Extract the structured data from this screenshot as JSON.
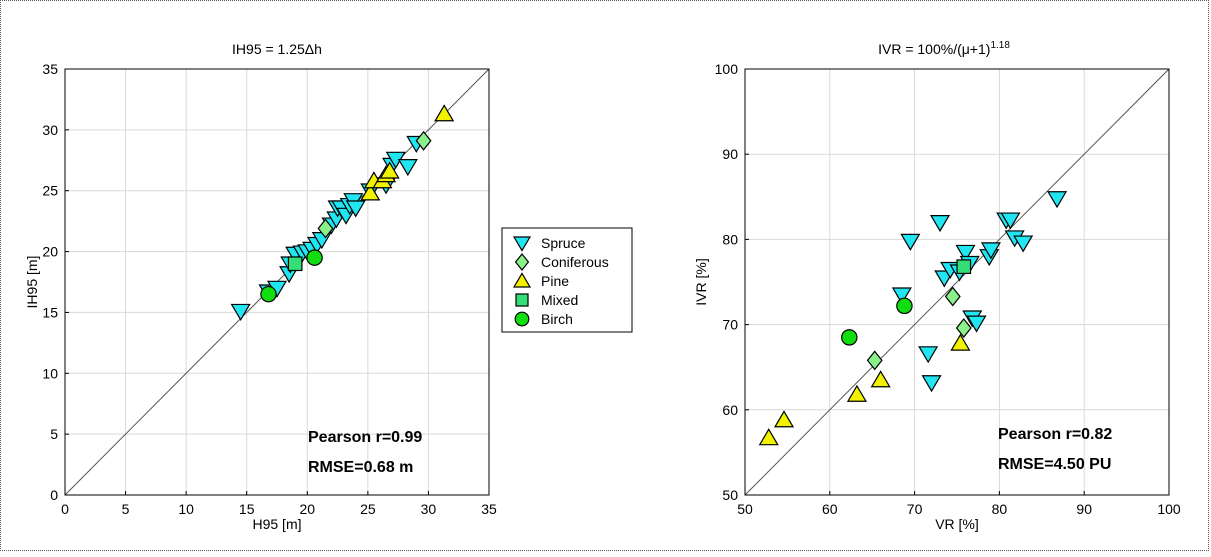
{
  "legend": {
    "entries": [
      {
        "label": "Spruce",
        "marker": "triangle-down",
        "color": "#22e5f2"
      },
      {
        "label": "Coniferous",
        "marker": "diamond",
        "color": "#8af08a"
      },
      {
        "label": "Pine",
        "marker": "triangle-up",
        "color": "#f2f200"
      },
      {
        "label": "Mixed",
        "marker": "square",
        "color": "#33dd77"
      },
      {
        "label": "Birch",
        "marker": "circle",
        "color": "#11dd11"
      }
    ]
  },
  "chart_data": [
    {
      "type": "scatter",
      "title": "IH95 = 1.25Δh",
      "xlabel": "H95 [m]",
      "ylabel": "IH95 [m]",
      "xlim": [
        0,
        35
      ],
      "ylim": [
        0,
        35
      ],
      "xticks": [
        "0",
        "5",
        "10",
        "15",
        "20",
        "25",
        "30",
        "35"
      ],
      "yticks": [
        "0",
        "5",
        "10",
        "15",
        "20",
        "25",
        "30",
        "35"
      ],
      "grid": true,
      "identity_line": true,
      "annotations": [
        "Pearson r=0.99",
        "RMSE=0.68 m"
      ],
      "series": [
        {
          "name": "Spruce",
          "points": [
            [
              14.5,
              15.1
            ],
            [
              16.8,
              16.7
            ],
            [
              17.5,
              17.0
            ],
            [
              18.5,
              18.2
            ],
            [
              18.6,
              19.0
            ],
            [
              19.0,
              19.8
            ],
            [
              19.6,
              19.9
            ],
            [
              20.0,
              20.0
            ],
            [
              20.4,
              20.2
            ],
            [
              20.8,
              20.6
            ],
            [
              21.2,
              21.0
            ],
            [
              22.0,
              22.2
            ],
            [
              22.4,
              22.7
            ],
            [
              22.5,
              23.6
            ],
            [
              22.8,
              23.6
            ],
            [
              23.2,
              23.0
            ],
            [
              23.5,
              23.8
            ],
            [
              23.8,
              24.2
            ],
            [
              25.2,
              25.0
            ],
            [
              26.5,
              25.5
            ],
            [
              27.0,
              27.1
            ],
            [
              27.3,
              27.6
            ],
            [
              28.3,
              27.0
            ],
            [
              29.0,
              28.9
            ],
            [
              24.0,
              23.6
            ]
          ]
        },
        {
          "name": "Coniferous",
          "points": [
            [
              21.5,
              21.9
            ],
            [
              29.6,
              29.1
            ]
          ]
        },
        {
          "name": "Pine",
          "points": [
            [
              25.2,
              24.8
            ],
            [
              25.5,
              25.8
            ],
            [
              26.2,
              25.8
            ],
            [
              26.5,
              26.3
            ],
            [
              26.8,
              26.6
            ],
            [
              31.3,
              31.3
            ]
          ]
        },
        {
          "name": "Mixed",
          "points": [
            [
              19.0,
              19.0
            ]
          ]
        },
        {
          "name": "Birch",
          "points": [
            [
              16.8,
              16.5
            ],
            [
              20.6,
              19.5
            ]
          ]
        }
      ]
    },
    {
      "type": "scatter",
      "title": "IVR = 100%/(μ+1)",
      "title_superscript": "1.18",
      "xlabel": "VR [%]",
      "ylabel": "IVR [%]",
      "xlim": [
        50,
        100
      ],
      "ylim": [
        50,
        100
      ],
      "xticks": [
        "50",
        "60",
        "70",
        "80",
        "90",
        "100"
      ],
      "yticks": [
        "50",
        "60",
        "70",
        "80",
        "90",
        "100"
      ],
      "grid": true,
      "identity_line": true,
      "annotations": [
        "Pearson r=0.82",
        "RMSE=4.50 PU"
      ],
      "series": [
        {
          "name": "Spruce",
          "points": [
            [
              68.5,
              73.5
            ],
            [
              69.5,
              79.8
            ],
            [
              71.6,
              66.6
            ],
            [
              72.0,
              63.2
            ],
            [
              73.0,
              82.0
            ],
            [
              73.5,
              75.5
            ],
            [
              74.2,
              76.5
            ],
            [
              75.3,
              76.2
            ],
            [
              76.0,
              78.5
            ],
            [
              76.5,
              77.2
            ],
            [
              76.8,
              70.8
            ],
            [
              77.3,
              70.2
            ],
            [
              78.8,
              78.0
            ],
            [
              79.0,
              78.8
            ],
            [
              80.8,
              82.3
            ],
            [
              81.3,
              82.3
            ],
            [
              81.8,
              80.2
            ],
            [
              82.8,
              79.6
            ],
            [
              86.8,
              84.8
            ]
          ]
        },
        {
          "name": "Coniferous",
          "points": [
            [
              65.3,
              65.8
            ],
            [
              74.5,
              73.3
            ],
            [
              75.8,
              69.6
            ]
          ]
        },
        {
          "name": "Pine",
          "points": [
            [
              52.8,
              56.7
            ],
            [
              54.6,
              58.8
            ],
            [
              63.2,
              61.8
            ],
            [
              66.0,
              63.5
            ],
            [
              75.4,
              67.8
            ]
          ]
        },
        {
          "name": "Mixed",
          "points": [
            [
              75.8,
              76.8
            ]
          ]
        },
        {
          "name": "Birch",
          "points": [
            [
              62.3,
              68.5
            ],
            [
              68.8,
              72.2
            ]
          ]
        }
      ]
    }
  ]
}
